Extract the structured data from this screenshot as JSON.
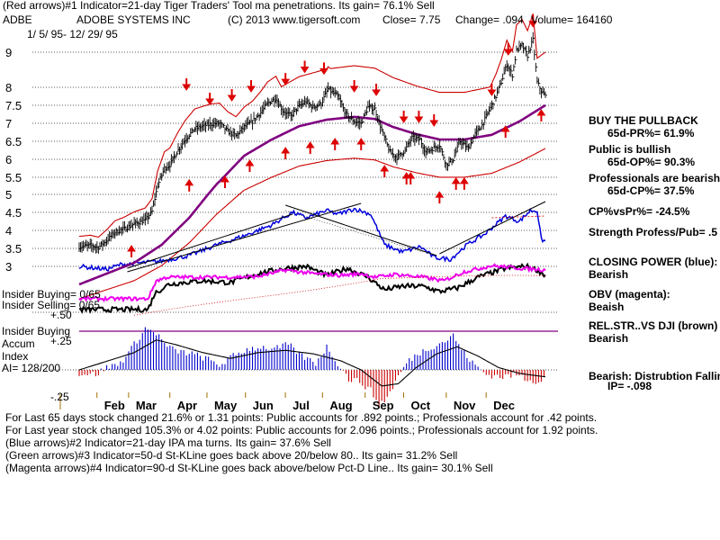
{
  "header": {
    "line1": "(Red arrows)#1 Indicator=21-day Tiger Traders' Tool ma penetrations.  Its gain= 76.1% Sell",
    "ticker": "ADBE",
    "company": "ADOBE SYSTEMS INC",
    "copyright": "(C) 2013 www.tigersoft.com",
    "close": "Close=  7.75",
    "change": "Change= .094",
    "volume": "Volume= 164160",
    "date_range": "1/ 5/ 95-  12/ 29/ 95"
  },
  "right_panel": {
    "buy_pullback": "BUY THE PULLBACK",
    "pr": "65d-PR%= 61.9%",
    "public": "Public is bullish",
    "op": "65d-OP%= 90.3%",
    "professionals": "Professionals are bearish",
    "cp": "65d-CP%= 37.5%",
    "cpvspr": "CP%vsPr%= -24.5%",
    "strength": "Strength Profess/Pub= .5",
    "closing_power": "CLOSING POWER (blue):",
    "closing_power_v": "Bearish",
    "obv": "OBV (magenta):",
    "obv_v": "Beaish",
    "relstr": "REL.STR..VS DJI (brown)",
    "relstr_v": "Bearish",
    "bearish": "Bearish:  Distrubtion Falling",
    "ip": "IP= -.098"
  },
  "left_panel": {
    "insider_buying": "Insider Buying= 0/65",
    "insider_selling": "Insider Selling= 0/65",
    "insider_buying2": "Insider Buying",
    "accum": "Accum",
    "index": "Index",
    "ai": "AI= 128/200",
    "p50": "+.50",
    "p25": "+.25",
    "m25": "-.25"
  },
  "bottom": {
    "line1": "For Last 65 days stock changed  21.6% or  1.31 points:  Public accounts for  .892 points.;   Professionals account for  .42 points.",
    "line2": "For Last year stock changed   105.3% or  4.02 points:  Public accounts for  2.096 points.;  Professionals account for  1.92 points.",
    "line3": "(Blue arrows)#2 Indicator=21-day IPA ma turns. Its gain= 37.6% Sell",
    "line4": "(Green arrows)#3 Indicator=50-d St-KLine goes back above 20/below 80.. Its gain= 31.2% Sell",
    "line5": "(Magenta arrows)#4 Indicator=90-d St-KLine goes back above/below Pct-D Line.. Its gain= 30.1% Sell"
  },
  "colors": {
    "price": "#000000",
    "band": "#cc0000",
    "ma": "#800080",
    "closing_power": "#0000dd",
    "obv": "#ee00ee",
    "relstr": "#000000",
    "grid": "#222222",
    "accum_pos": "#0000cc",
    "accum_neg": "#cc0000",
    "arrow": "#dd0000",
    "axis_tick": "#a07000"
  },
  "chart_data": {
    "type": "line",
    "title": "ADOBE SYSTEMS INC (ADBE) 1/5/95 - 12/29/95",
    "y_ticks": [
      9,
      8,
      7.5,
      7,
      6.5,
      6,
      5.5,
      5,
      4.5,
      4,
      3.5,
      3
    ],
    "y_tick_labels": [
      "9",
      "8",
      "7.5",
      "7",
      "6.5",
      "6",
      "5.5",
      "5",
      "4.5",
      "4",
      "3.5",
      "3"
    ],
    "x_labels": [
      "Feb",
      "Mar",
      "Apr",
      "May",
      "Jun",
      "Jul",
      "Aug",
      "Sep",
      "Oct",
      "Nov",
      "Dec"
    ],
    "x_label_day": [
      26,
      49,
      79,
      106,
      134,
      163,
      190,
      221,
      249,
      280,
      309
    ],
    "days_total": 340,
    "price_anchors": [
      [
        0,
        3.55
      ],
      [
        8,
        3.58
      ],
      [
        14,
        3.53
      ],
      [
        20,
        3.72
      ],
      [
        26,
        3.95
      ],
      [
        33,
        4.05
      ],
      [
        40,
        4.18
      ],
      [
        48,
        4.28
      ],
      [
        53,
        4.52
      ],
      [
        57,
        5.25
      ],
      [
        62,
        5.75
      ],
      [
        66,
        5.85
      ],
      [
        71,
        6.2
      ],
      [
        77,
        6.55
      ],
      [
        84,
        6.85
      ],
      [
        90,
        6.92
      ],
      [
        96,
        6.98
      ],
      [
        102,
        7.0
      ],
      [
        108,
        6.78
      ],
      [
        114,
        6.65
      ],
      [
        120,
        6.9
      ],
      [
        126,
        7.05
      ],
      [
        132,
        7.3
      ],
      [
        137,
        7.55
      ],
      [
        143,
        7.7
      ],
      [
        148,
        7.35
      ],
      [
        154,
        7.2
      ],
      [
        159,
        7.45
      ],
      [
        165,
        7.6
      ],
      [
        170,
        7.45
      ],
      [
        176,
        7.55
      ],
      [
        181,
        7.95
      ],
      [
        188,
        7.75
      ],
      [
        194,
        7.25
      ],
      [
        200,
        7.05
      ],
      [
        205,
        7.0
      ],
      [
        210,
        7.45
      ],
      [
        215,
        7.4
      ],
      [
        221,
        6.7
      ],
      [
        226,
        6.2
      ],
      [
        231,
        6.05
      ],
      [
        237,
        6.25
      ],
      [
        242,
        6.6
      ],
      [
        248,
        6.55
      ],
      [
        252,
        6.2
      ],
      [
        257,
        6.3
      ],
      [
        262,
        6.4
      ],
      [
        267,
        5.85
      ],
      [
        272,
        6.0
      ],
      [
        277,
        6.5
      ],
      [
        283,
        6.3
      ],
      [
        288,
        6.7
      ],
      [
        293,
        6.95
      ],
      [
        298,
        7.35
      ],
      [
        303,
        7.75
      ],
      [
        307,
        8.15
      ],
      [
        311,
        8.65
      ],
      [
        315,
        8.35
      ],
      [
        318,
        9.05
      ],
      [
        322,
        9.2
      ],
      [
        326,
        8.9
      ],
      [
        330,
        9.35
      ],
      [
        333,
        8.15
      ],
      [
        336,
        7.9
      ],
      [
        339,
        7.75
      ]
    ],
    "ma_anchors": [
      [
        0,
        2.5
      ],
      [
        40,
        3.1
      ],
      [
        60,
        3.6
      ],
      [
        80,
        4.35
      ],
      [
        100,
        5.3
      ],
      [
        120,
        6.1
      ],
      [
        140,
        6.55
      ],
      [
        160,
        6.92
      ],
      [
        180,
        7.1
      ],
      [
        200,
        7.18
      ],
      [
        215,
        7.12
      ],
      [
        228,
        6.9
      ],
      [
        245,
        6.7
      ],
      [
        262,
        6.55
      ],
      [
        280,
        6.55
      ],
      [
        300,
        6.68
      ],
      [
        320,
        7.05
      ],
      [
        339,
        7.5
      ]
    ],
    "cp_anchors": [
      [
        0,
        3.0
      ],
      [
        20,
        2.92
      ],
      [
        30,
        3.05
      ],
      [
        45,
        3.1
      ],
      [
        60,
        3.15
      ],
      [
        80,
        3.3
      ],
      [
        100,
        3.6
      ],
      [
        120,
        3.85
      ],
      [
        140,
        4.15
      ],
      [
        155,
        4.5
      ],
      [
        165,
        4.35
      ],
      [
        180,
        4.55
      ],
      [
        188,
        4.45
      ],
      [
        200,
        4.6
      ],
      [
        212,
        4.45
      ],
      [
        222,
        3.6
      ],
      [
        235,
        3.4
      ],
      [
        248,
        3.55
      ],
      [
        258,
        3.25
      ],
      [
        270,
        3.2
      ],
      [
        282,
        3.6
      ],
      [
        295,
        3.9
      ],
      [
        310,
        4.4
      ],
      [
        320,
        4.25
      ],
      [
        328,
        4.55
      ],
      [
        333,
        4.55
      ],
      [
        336,
        3.75
      ],
      [
        339,
        3.7
      ]
    ],
    "obv_anchors": [
      [
        0,
        2.1
      ],
      [
        50,
        2.1
      ],
      [
        56,
        2.6
      ],
      [
        64,
        2.7
      ],
      [
        90,
        2.7
      ],
      [
        110,
        2.7
      ],
      [
        130,
        2.72
      ],
      [
        150,
        2.9
      ],
      [
        170,
        2.8
      ],
      [
        190,
        2.75
      ],
      [
        205,
        2.8
      ],
      [
        215,
        2.7
      ],
      [
        230,
        2.78
      ],
      [
        250,
        2.7
      ],
      [
        265,
        2.6
      ],
      [
        280,
        2.85
      ],
      [
        300,
        3.02
      ],
      [
        320,
        2.95
      ],
      [
        339,
        2.9
      ]
    ],
    "relstr_anchors": [
      [
        0,
        1.8
      ],
      [
        50,
        1.8
      ],
      [
        55,
        2.25
      ],
      [
        65,
        2.5
      ],
      [
        75,
        2.55
      ],
      [
        90,
        2.6
      ],
      [
        110,
        2.55
      ],
      [
        130,
        2.8
      ],
      [
        150,
        2.95
      ],
      [
        165,
        3.0
      ],
      [
        180,
        2.75
      ],
      [
        195,
        2.95
      ],
      [
        210,
        2.7
      ],
      [
        222,
        2.35
      ],
      [
        235,
        2.45
      ],
      [
        250,
        2.45
      ],
      [
        262,
        2.3
      ],
      [
        275,
        2.4
      ],
      [
        290,
        2.7
      ],
      [
        310,
        2.95
      ],
      [
        325,
        3.0
      ],
      [
        333,
        2.9
      ],
      [
        339,
        2.75
      ]
    ],
    "accum_anchors": [
      [
        0,
        -0.03
      ],
      [
        12,
        -0.04
      ],
      [
        20,
        0.02
      ],
      [
        30,
        0.06
      ],
      [
        40,
        0.22
      ],
      [
        48,
        0.36
      ],
      [
        56,
        0.32
      ],
      [
        64,
        0.2
      ],
      [
        72,
        0.16
      ],
      [
        82,
        0.14
      ],
      [
        92,
        0.1
      ],
      [
        102,
        0.04
      ],
      [
        112,
        0.12
      ],
      [
        122,
        0.18
      ],
      [
        132,
        0.2
      ],
      [
        142,
        0.18
      ],
      [
        152,
        0.22
      ],
      [
        162,
        0.12
      ],
      [
        172,
        0.06
      ],
      [
        180,
        0.2
      ],
      [
        188,
        0.06
      ],
      [
        196,
        -0.08
      ],
      [
        204,
        -0.1
      ],
      [
        212,
        -0.18
      ],
      [
        218,
        -0.3
      ],
      [
        224,
        -0.24
      ],
      [
        230,
        -0.1
      ],
      [
        238,
        0.06
      ],
      [
        246,
        0.14
      ],
      [
        256,
        0.2
      ],
      [
        266,
        0.25
      ],
      [
        272,
        0.3
      ],
      [
        278,
        0.18
      ],
      [
        286,
        0.06
      ],
      [
        296,
        -0.04
      ],
      [
        308,
        -0.06
      ],
      [
        318,
        -0.04
      ],
      [
        326,
        -0.08
      ],
      [
        334,
        -0.1
      ],
      [
        339,
        -0.06
      ]
    ],
    "accum_ma_anchors": [
      [
        0,
        0.0
      ],
      [
        40,
        0.15
      ],
      [
        56,
        0.26
      ],
      [
        70,
        0.22
      ],
      [
        90,
        0.15
      ],
      [
        110,
        0.1
      ],
      [
        130,
        0.15
      ],
      [
        150,
        0.17
      ],
      [
        170,
        0.14
      ],
      [
        190,
        0.08
      ],
      [
        205,
        0.0
      ],
      [
        220,
        -0.14
      ],
      [
        232,
        -0.12
      ],
      [
        245,
        0.02
      ],
      [
        260,
        0.14
      ],
      [
        275,
        0.2
      ],
      [
        290,
        0.12
      ],
      [
        305,
        0.02
      ],
      [
        320,
        -0.03
      ],
      [
        339,
        -0.06
      ]
    ],
    "accum_ylim": [
      -0.3,
      0.5
    ],
    "red_arrows_down": [
      [
        78,
        7.95
      ],
      [
        95,
        7.55
      ],
      [
        111,
        7.65
      ],
      [
        125,
        7.9
      ],
      [
        150,
        8.1
      ],
      [
        164,
        8.45
      ],
      [
        178,
        8.4
      ],
      [
        200,
        7.9
      ],
      [
        216,
        7.8
      ],
      [
        236,
        7.05
      ],
      [
        247,
        7.05
      ],
      [
        258,
        6.95
      ],
      [
        300,
        7.8
      ],
      [
        312,
        8.95
      ],
      [
        330,
        9.75
      ]
    ],
    "red_arrows_up": [
      [
        38,
        3.55
      ],
      [
        80,
        5.4
      ],
      [
        106,
        5.5
      ],
      [
        124,
        5.95
      ],
      [
        150,
        6.3
      ],
      [
        168,
        6.45
      ],
      [
        186,
        6.55
      ],
      [
        205,
        6.55
      ],
      [
        222,
        5.8
      ],
      [
        238,
        5.6
      ],
      [
        241,
        5.6
      ],
      [
        262,
        5.05
      ],
      [
        274,
        5.45
      ],
      [
        280,
        5.45
      ],
      [
        310,
        6.9
      ],
      [
        336,
        7.35
      ]
    ]
  }
}
